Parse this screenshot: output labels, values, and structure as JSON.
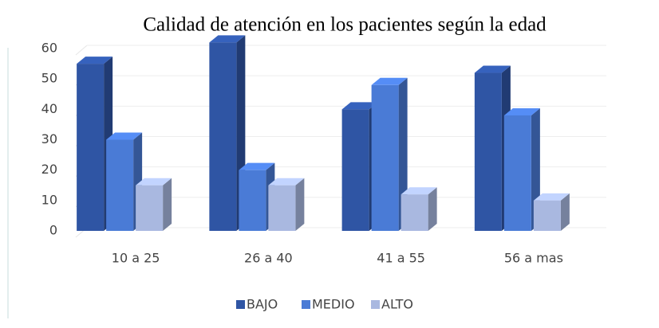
{
  "chart_data": {
    "type": "bar3d",
    "title": "Calidad de atención en los pacientes según la edad",
    "categories": [
      "10 a 25",
      "26 a 40",
      "41 a 55",
      "56 a mas"
    ],
    "series": [
      {
        "name": "BAJO",
        "color": "#2f55a4",
        "values": [
          55,
          62,
          40,
          52
        ]
      },
      {
        "name": "MEDIO",
        "color": "#4a7bd6",
        "values": [
          30,
          20,
          48,
          38
        ]
      },
      {
        "name": "ALTO",
        "color": "#a9b8e0",
        "values": [
          15,
          15,
          12,
          10
        ]
      }
    ],
    "ylim": [
      0,
      60
    ],
    "yticks": [
      0,
      10,
      20,
      30,
      40,
      50,
      60
    ],
    "grid": true,
    "legend": "bottom"
  }
}
